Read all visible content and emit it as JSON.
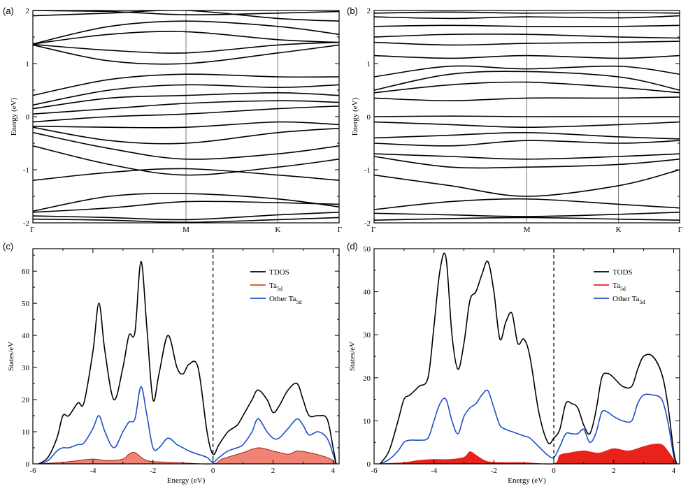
{
  "chart_data": [
    {
      "panel": "(a)",
      "type": "line",
      "ylabel": "Energy (eV)",
      "ylim": [
        -2,
        2
      ],
      "yticks": [
        "-2",
        "-1",
        "0",
        "1",
        "2"
      ],
      "kpoints": [
        "Γ",
        "M",
        "K",
        "Γ"
      ],
      "kpos": [
        0,
        0.5,
        0.8,
        1.0
      ],
      "bands": [
        [
          -1.93,
          -1.95,
          -1.99,
          -1.94,
          -1.9
        ],
        [
          -1.87,
          -1.9,
          -1.94,
          -1.85,
          -1.8
        ],
        [
          -1.8,
          -1.72,
          -1.6,
          -1.62,
          -1.65
        ],
        [
          -1.78,
          -1.5,
          -1.45,
          -1.55,
          -1.7
        ],
        [
          -1.2,
          -1.05,
          -0.98,
          -1.1,
          -1.2
        ],
        [
          -0.55,
          -0.9,
          -1.1,
          -0.95,
          -0.8
        ],
        [
          -0.3,
          -0.6,
          -0.8,
          -0.7,
          -0.55
        ],
        [
          -0.2,
          -0.45,
          -0.5,
          -0.3,
          -0.22
        ],
        [
          -0.18,
          -0.2,
          -0.2,
          -0.1,
          -0.15
        ],
        [
          -0.1,
          0.0,
          0.05,
          0.15,
          0.2
        ],
        [
          0.05,
          0.15,
          0.25,
          0.3,
          0.27
        ],
        [
          0.15,
          0.35,
          0.4,
          0.45,
          0.4
        ],
        [
          0.22,
          0.5,
          0.6,
          0.55,
          0.6
        ],
        [
          0.4,
          0.7,
          0.8,
          0.75,
          0.75
        ],
        [
          1.35,
          1.05,
          1.0,
          1.2,
          1.35
        ],
        [
          1.36,
          1.25,
          1.2,
          1.35,
          1.4
        ],
        [
          1.37,
          1.55,
          1.6,
          1.45,
          1.4
        ],
        [
          1.37,
          1.7,
          1.8,
          1.7,
          1.55
        ],
        [
          1.9,
          1.95,
          2.0,
          1.85,
          1.8
        ],
        [
          2.0,
          1.98,
          1.92,
          1.95,
          1.98
        ]
      ]
    },
    {
      "panel": "(b)",
      "type": "line",
      "ylabel": "Energy (eV)",
      "ylim": [
        -2,
        2
      ],
      "yticks": [
        "-2",
        "-1",
        "0",
        "1",
        "2"
      ],
      "kpoints": [
        "Γ",
        "M",
        "K",
        "Γ"
      ],
      "kpos": [
        0,
        0.5,
        0.8,
        1.0
      ],
      "bands": [
        [
          -1.95,
          -1.92,
          -1.9,
          -1.93,
          -1.95
        ],
        [
          -1.82,
          -1.85,
          -1.88,
          -1.84,
          -1.8
        ],
        [
          -1.75,
          -1.6,
          -1.55,
          -1.65,
          -1.72
        ],
        [
          -1.1,
          -1.3,
          -1.5,
          -1.3,
          -1.0
        ],
        [
          -0.75,
          -0.95,
          -0.95,
          -0.9,
          -0.8
        ],
        [
          -0.7,
          -0.75,
          -0.8,
          -0.75,
          -0.7
        ],
        [
          -0.5,
          -0.55,
          -0.45,
          -0.5,
          -0.45
        ],
        [
          -0.4,
          -0.35,
          -0.3,
          -0.38,
          -0.42
        ],
        [
          -0.1,
          -0.15,
          -0.2,
          -0.15,
          -0.1
        ],
        [
          0.0,
          0.01,
          0.0,
          0.0,
          0.0
        ],
        [
          0.35,
          0.3,
          0.35,
          0.35,
          0.37
        ],
        [
          0.45,
          0.6,
          0.65,
          0.55,
          0.45
        ],
        [
          0.5,
          0.8,
          0.85,
          0.75,
          0.5
        ],
        [
          0.75,
          0.95,
          0.9,
          0.95,
          0.8
        ],
        [
          1.15,
          1.1,
          1.15,
          1.1,
          1.15
        ],
        [
          1.4,
          1.35,
          1.38,
          1.4,
          1.42
        ],
        [
          1.5,
          1.55,
          1.55,
          1.5,
          1.48
        ],
        [
          1.7,
          1.72,
          1.7,
          1.7,
          1.72
        ],
        [
          1.88,
          1.85,
          1.88,
          1.86,
          1.9
        ],
        [
          1.95,
          1.97,
          1.95,
          1.96,
          1.95
        ]
      ]
    },
    {
      "panel": "(c)",
      "type": "line",
      "xlabel": "Energy (eV)",
      "ylabel": "States/eV",
      "xlim": [
        -6,
        4.2
      ],
      "ylim": [
        0,
        67
      ],
      "xticks": [
        "-6",
        "-4",
        "-2",
        "0",
        "2",
        "4"
      ],
      "yticks": [
        "0",
        "10",
        "20",
        "30",
        "40",
        "50",
        "60"
      ],
      "fermi_level": 0,
      "legend": {
        "tdos": "TDOS",
        "ta_base": "Ta",
        "ta_sub": "5d",
        "other_base": "Other Ta",
        "other_sub": "5d"
      },
      "series": [
        {
          "name": "TDOS",
          "color": "#000000",
          "x": [
            -5.8,
            -5.5,
            -5.2,
            -5.0,
            -4.8,
            -4.5,
            -4.3,
            -4.0,
            -3.8,
            -3.6,
            -3.3,
            -3.0,
            -2.8,
            -2.6,
            -2.4,
            -2.2,
            -2.0,
            -1.8,
            -1.5,
            -1.2,
            -1.0,
            -0.8,
            -0.5,
            -0.2,
            0.0,
            0.2,
            0.5,
            0.8,
            1.0,
            1.3,
            1.5,
            1.8,
            2.0,
            2.2,
            2.5,
            2.8,
            3.0,
            3.2,
            3.5,
            3.8,
            4.0,
            4.1
          ],
          "values": [
            0,
            2,
            8,
            15,
            15,
            19,
            19,
            35,
            50,
            35,
            20,
            30,
            40,
            41,
            63,
            42,
            20,
            28,
            40,
            30,
            28,
            31,
            30,
            10,
            3,
            6,
            10,
            12,
            15,
            20,
            23,
            20,
            16,
            18,
            23,
            25,
            20,
            15,
            15,
            14,
            5,
            0
          ]
        },
        {
          "name": "Other Ta5d",
          "color": "#1f4fc8",
          "x": [
            -5.8,
            -5.5,
            -5.2,
            -5.0,
            -4.8,
            -4.5,
            -4.3,
            -4.0,
            -3.8,
            -3.6,
            -3.3,
            -3.0,
            -2.8,
            -2.6,
            -2.4,
            -2.2,
            -2.0,
            -1.8,
            -1.5,
            -1.2,
            -1.0,
            -0.8,
            -0.5,
            -0.2,
            0.0,
            0.2,
            0.5,
            0.8,
            1.0,
            1.3,
            1.5,
            1.8,
            2.0,
            2.2,
            2.5,
            2.8,
            3.0,
            3.2,
            3.5,
            3.8,
            4.0,
            4.1
          ],
          "values": [
            0,
            1,
            4,
            5,
            5,
            6,
            6.5,
            11,
            15,
            10,
            5,
            10,
            13,
            14,
            24,
            15,
            5,
            5,
            8,
            6,
            5,
            4,
            3,
            2,
            0.5,
            2,
            4,
            5,
            6,
            10,
            14,
            10,
            8,
            8,
            11,
            14,
            12,
            9,
            10,
            8,
            3,
            0
          ]
        },
        {
          "name": "Ta5d",
          "color": "#e8412b",
          "x": [
            -5.8,
            -5.0,
            -4.5,
            -4.0,
            -3.5,
            -3.0,
            -2.8,
            -2.6,
            -2.2,
            -1.5,
            -1.0,
            0.0,
            0.3,
            1.0,
            1.5,
            2.0,
            2.5,
            2.8,
            3.2,
            3.8,
            4.0,
            4.1
          ],
          "values": [
            0,
            0.5,
            1,
            1.5,
            1,
            1.5,
            3,
            3.5,
            1,
            0.5,
            0.3,
            0,
            1.5,
            3.5,
            5,
            4,
            3,
            4,
            3.5,
            2,
            1,
            0
          ]
        }
      ]
    },
    {
      "panel": "(d)",
      "type": "line",
      "xlabel": "Energy (eV)",
      "ylabel": "States/eV",
      "xlim": [
        -6,
        4.2
      ],
      "ylim": [
        0,
        50
      ],
      "xticks": [
        "-6",
        "-4",
        "-2",
        "0",
        "2",
        "4"
      ],
      "yticks": [
        "0",
        "10",
        "20",
        "30",
        "40",
        "50"
      ],
      "fermi_level": 0,
      "legend": {
        "tdos": "TODS",
        "ta_base": "Ta",
        "ta_sub": "5d",
        "other_base": "Other Ta",
        "other_sub": "5d"
      },
      "series": [
        {
          "name": "TODS",
          "color": "#000000",
          "x": [
            -5.8,
            -5.5,
            -5.2,
            -5.0,
            -4.8,
            -4.5,
            -4.2,
            -4.0,
            -3.8,
            -3.6,
            -3.4,
            -3.2,
            -3.0,
            -2.8,
            -2.6,
            -2.4,
            -2.2,
            -2.0,
            -1.8,
            -1.6,
            -1.4,
            -1.2,
            -1.0,
            -0.8,
            -0.5,
            -0.2,
            0.0,
            0.2,
            0.4,
            0.6,
            0.8,
            1.0,
            1.2,
            1.4,
            1.6,
            1.8,
            2.0,
            2.3,
            2.6,
            2.8,
            3.0,
            3.3,
            3.6,
            3.8,
            4.0,
            4.1
          ],
          "values": [
            0,
            3,
            10,
            15,
            16,
            18,
            20,
            32,
            45,
            48,
            30,
            22,
            28,
            38,
            40,
            44,
            47,
            40,
            29,
            33,
            35,
            28,
            29,
            25,
            12,
            5,
            6,
            8,
            14,
            14,
            13,
            9,
            7,
            12,
            20,
            21,
            20,
            18,
            18,
            22,
            25,
            25,
            21,
            14,
            3,
            0
          ]
        },
        {
          "name": "Other Ta5d",
          "color": "#1f4fc8",
          "x": [
            -5.8,
            -5.5,
            -5.2,
            -5.0,
            -4.8,
            -4.5,
            -4.2,
            -4.0,
            -3.8,
            -3.6,
            -3.4,
            -3.2,
            -3.0,
            -2.8,
            -2.6,
            -2.4,
            -2.2,
            -2.0,
            -1.8,
            -1.6,
            -1.4,
            -1.2,
            -1.0,
            -0.8,
            -0.5,
            -0.2,
            0.0,
            0.2,
            0.4,
            0.6,
            0.8,
            1.0,
            1.2,
            1.4,
            1.6,
            1.8,
            2.0,
            2.3,
            2.6,
            2.8,
            3.0,
            3.3,
            3.6,
            3.8,
            4.0,
            4.1
          ],
          "values": [
            0,
            1,
            3,
            5,
            5.5,
            5.5,
            6,
            10,
            14,
            15,
            10,
            7,
            11,
            13,
            14,
            16,
            17,
            13,
            9,
            8,
            7.5,
            7,
            6.5,
            6,
            4,
            2,
            1.5,
            4,
            7,
            7,
            7,
            8,
            5,
            7,
            12,
            12,
            11,
            10,
            10,
            14,
            16,
            16,
            15,
            10,
            2,
            0
          ]
        },
        {
          "name": "Ta5d",
          "color": "#e8231b",
          "x": [
            -5.8,
            -5.0,
            -4.5,
            -4.0,
            -3.5,
            -3.0,
            -2.8,
            -2.6,
            -2.2,
            -1.5,
            -1.0,
            0.0,
            0.2,
            0.5,
            1.0,
            1.5,
            2.0,
            2.5,
            3.0,
            3.3,
            3.6,
            3.8,
            4.0,
            4.1
          ],
          "values": [
            0,
            0.3,
            0.8,
            1,
            1,
            1.5,
            2.8,
            2,
            0.5,
            0.3,
            0.3,
            0,
            2,
            2.5,
            3,
            2.5,
            3.5,
            3,
            4,
            4.5,
            4.5,
            3,
            1,
            0
          ]
        }
      ]
    }
  ]
}
